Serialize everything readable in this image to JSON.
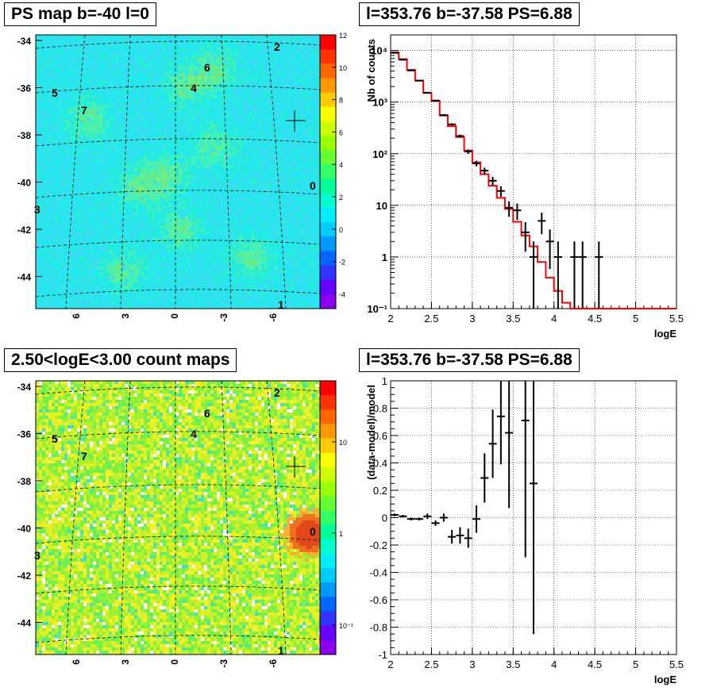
{
  "titles": {
    "tl": "PS map b=-40 l=0",
    "tr": "l=353.76 b=-37.58 PS=6.88",
    "bl": "2.50<logE<3.00 count maps",
    "br": "l=353.76 b=-37.58 PS=6.88"
  },
  "colors": {
    "axis": "#000000",
    "model_line": "#ff0000",
    "data_marker": "#000000",
    "map_tl_background": "#22e8ec",
    "map_bl_background": "#a8f030",
    "hotspot": "#e05020"
  },
  "maps": {
    "lat_ticks": [
      "-34",
      "-36",
      "-38",
      "-40",
      "-42",
      "-44"
    ],
    "lon_ticks": [
      "6",
      "3",
      "0",
      "-3",
      "-6"
    ],
    "source_labels": [
      "0",
      "1",
      "2",
      "3",
      "4",
      "5",
      "6",
      "7"
    ],
    "tl_colorbar_ticks": [
      "12",
      "10",
      "8",
      "6",
      "4",
      "2",
      "0",
      "-2",
      "-4"
    ],
    "bl_colorbar_ticks": [
      "10",
      "1",
      "10⁻¹"
    ]
  },
  "chart_data": [
    {
      "type": "line",
      "title": "l=353.76 b=-37.58 PS=6.88",
      "xlabel": "logE",
      "ylabel": "Nb of counts",
      "xlim": [
        2,
        5.5
      ],
      "ylim": [
        0.1,
        20000
      ],
      "yscale": "log",
      "grid": true,
      "x_ticks": [
        "2",
        "2.5",
        "3",
        "3.5",
        "4",
        "4.5",
        "5",
        "5.5"
      ],
      "y_ticks": [
        "10⁻¹",
        "1",
        "10",
        "10²",
        "10³",
        "10⁴"
      ],
      "series": [
        {
          "style": "histogram-step",
          "bin_edges": [
            2.0,
            2.1,
            2.2,
            2.3,
            2.4,
            2.5,
            2.6,
            2.7,
            2.8,
            2.9,
            3.0,
            3.1,
            3.2,
            3.3,
            3.4,
            3.5,
            3.6,
            3.7,
            3.8,
            3.9,
            4.0,
            4.1,
            4.2,
            4.3,
            4.4,
            4.5,
            4.6,
            4.7,
            4.8,
            4.9,
            5.0,
            5.1,
            5.2,
            5.3,
            5.4,
            5.5
          ],
          "values": [
            9200,
            6800,
            4200,
            2600,
            1500,
            1050,
            550,
            340,
            210,
            115,
            68,
            40,
            24,
            14,
            8.5,
            4.8,
            2.6,
            1.6,
            0.8,
            0.4,
            0.22,
            0.13,
            0.1,
            0.1,
            0.1,
            0.1,
            0.1,
            0.1,
            0.1,
            0.1,
            0.1,
            0.1,
            0.1,
            0.1,
            0.1
          ]
        },
        {
          "style": "error-points",
          "x": [
            2.05,
            2.15,
            2.25,
            2.35,
            2.45,
            2.55,
            2.65,
            2.75,
            2.85,
            2.95,
            3.05,
            3.15,
            3.25,
            3.35,
            3.45,
            3.55,
            3.65,
            3.75,
            3.85,
            3.95,
            4.05,
            4.25,
            4.35,
            4.55
          ],
          "y": [
            9000,
            6600,
            4100,
            2600,
            1520,
            1070,
            560,
            370,
            220,
            110,
            65,
            47,
            30,
            19,
            9,
            8,
            3,
            1,
            5,
            2,
            1,
            1,
            1,
            1
          ]
        }
      ]
    },
    {
      "type": "scatter",
      "title": "l=353.76 b=-37.58 PS=6.88",
      "xlabel": "logE",
      "ylabel": "(data-model)/model",
      "xlim": [
        2,
        5.5
      ],
      "ylim": [
        -1,
        1
      ],
      "grid": true,
      "x_ticks": [
        "2",
        "2.5",
        "3",
        "3.5",
        "4",
        "4.5",
        "5",
        "5.5"
      ],
      "y_ticks": [
        "-1",
        "-0.8",
        "-0.6",
        "-0.4",
        "-0.2",
        "0",
        "0.2",
        "0.4",
        "0.6",
        "0.8",
        "1"
      ],
      "series": [
        {
          "style": "error-points",
          "x": [
            2.05,
            2.15,
            2.25,
            2.35,
            2.45,
            2.55,
            2.65,
            2.75,
            2.85,
            2.95,
            3.05,
            3.15,
            3.25,
            3.35,
            3.45,
            3.65,
            3.75
          ],
          "y": [
            0.02,
            0.01,
            -0.01,
            -0.01,
            0.01,
            -0.04,
            0.0,
            -0.14,
            -0.13,
            -0.15,
            -0.01,
            0.29,
            0.54,
            0.74,
            0.62,
            0.71,
            0.25
          ],
          "err": [
            0.01,
            0.01,
            0.01,
            0.01,
            0.02,
            0.02,
            0.03,
            0.05,
            0.06,
            0.07,
            0.1,
            0.18,
            0.25,
            0.35,
            0.55,
            1.0,
            1.1
          ]
        }
      ]
    }
  ]
}
